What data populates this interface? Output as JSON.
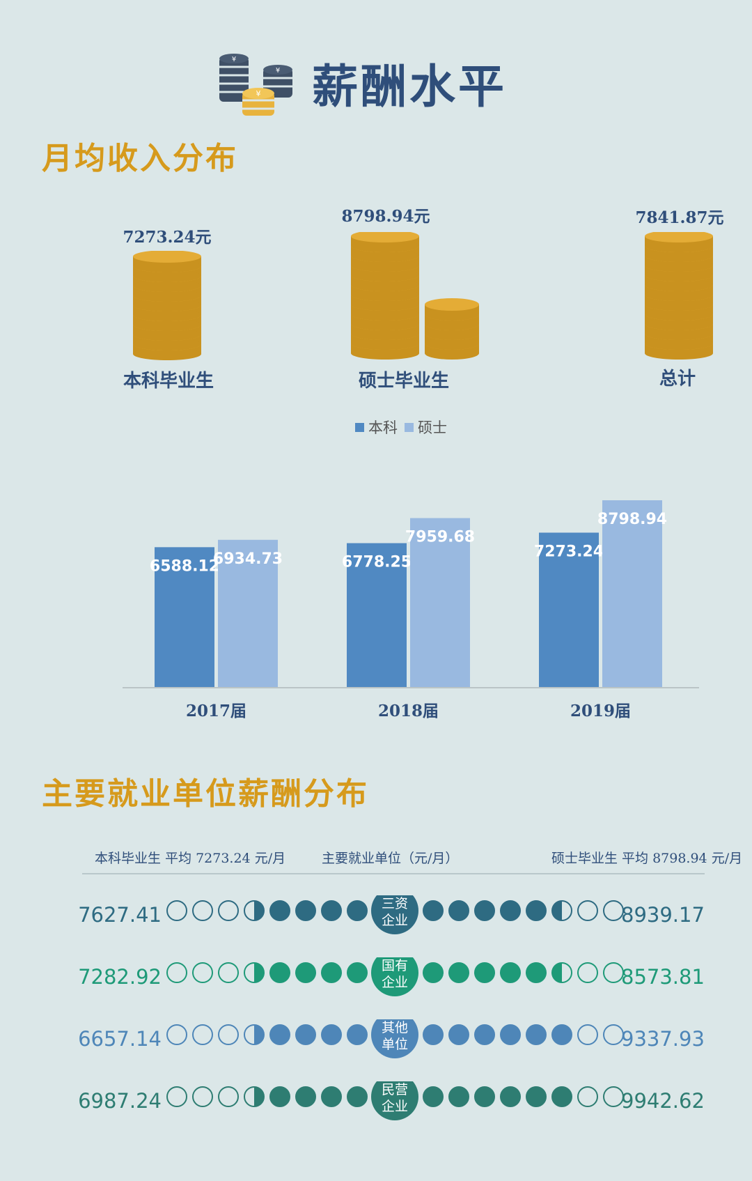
{
  "title": "薪酬水平",
  "section1": {
    "title": "月均收入分布",
    "stacks": [
      {
        "label": "本科毕业生",
        "value": "7273.24元"
      },
      {
        "label": "硕士毕业生",
        "value": "8798.94元"
      },
      {
        "label": "总计",
        "value": "7841.87元"
      }
    ]
  },
  "chart_data": {
    "type": "bar",
    "categories": [
      "2017届",
      "2018届",
      "2019届"
    ],
    "series": [
      {
        "name": "本科",
        "values": [
          6588.12,
          6778.25,
          7273.24
        ],
        "color": "#5089c2"
      },
      {
        "name": "硕士",
        "values": [
          6934.73,
          7959.68,
          8798.94
        ],
        "color": "#99b9e0"
      }
    ],
    "ylim": [
      0,
      8798.94
    ],
    "legend": "top-center",
    "grid": false
  },
  "section2": {
    "title": "主要就业单位薪酬分布",
    "header_left": "本科毕业生 平均 7273.24 元/月",
    "header_center": "主要就业单位（元/月）",
    "header_right": "硕士毕业生 平均 8798.94 元/月",
    "rows": [
      {
        "unit_line1": "三资",
        "unit_line2": "企业",
        "left": "7627.41",
        "right": "8939.17",
        "color": "#2e6b82",
        "left_fill": 4.5,
        "right_fill": 5.5
      },
      {
        "unit_line1": "国有",
        "unit_line2": "企业",
        "left": "7282.92",
        "right": "8573.81",
        "color": "#1e9a78",
        "left_fill": 4.5,
        "right_fill": 5.5
      },
      {
        "unit_line1": "其他",
        "unit_line2": "单位",
        "left": "6657.14",
        "right": "9337.93",
        "color": "#4e86b8",
        "left_fill": 4.5,
        "right_fill": 6
      },
      {
        "unit_line1": "民营",
        "unit_line2": "企业",
        "left": "6987.24",
        "right": "9942.62",
        "color": "#2e7d72",
        "left_fill": 4.5,
        "right_fill": 6
      }
    ]
  }
}
